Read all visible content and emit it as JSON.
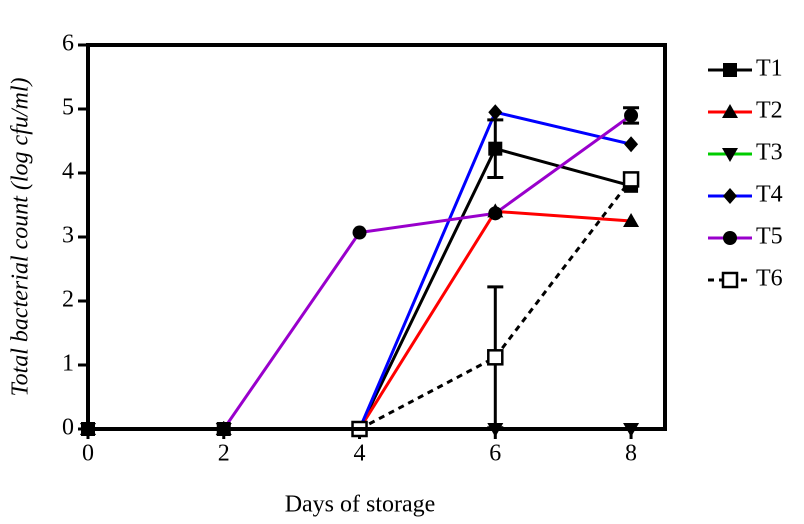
{
  "chart_data": {
    "type": "line",
    "x_label": "Days of storage",
    "y_label": "Total bacterial count (log cfu/ml)",
    "x": [
      0,
      2,
      4,
      6,
      8
    ],
    "xlim": [
      0,
      8.5
    ],
    "xticks": [
      0,
      2,
      4,
      6,
      8
    ],
    "ylim": [
      0,
      6
    ],
    "yticks": [
      0,
      1,
      2,
      3,
      4,
      5,
      6
    ],
    "legend": "right",
    "series": [
      {
        "name": "T1",
        "color": "#000000",
        "marker": "square",
        "line_style": "solid",
        "values": [
          0,
          0,
          0,
          4.38,
          3.8
        ],
        "errors": [
          null,
          null,
          null,
          0.45,
          null
        ]
      },
      {
        "name": "T2",
        "color": "#ff0000",
        "marker": "triangle-up",
        "line_style": "solid",
        "values": [
          0,
          0,
          0,
          3.4,
          3.25
        ],
        "errors": [
          null,
          null,
          null,
          null,
          null
        ]
      },
      {
        "name": "T3",
        "color": "#00cc00",
        "marker": "triangle-down",
        "line_style": "solid",
        "values": [
          0,
          0,
          0,
          0,
          0
        ],
        "errors": [
          null,
          null,
          null,
          null,
          null
        ]
      },
      {
        "name": "T4",
        "color": "#0000ff",
        "marker": "diamond",
        "line_style": "solid",
        "values": [
          0,
          0,
          0,
          4.95,
          4.45
        ],
        "errors": [
          null,
          null,
          null,
          null,
          null
        ]
      },
      {
        "name": "T5",
        "color": "#9900cc",
        "marker": "circle",
        "line_style": "solid",
        "values": [
          0,
          0,
          3.07,
          3.37,
          4.9
        ],
        "errors": [
          null,
          null,
          null,
          null,
          0.12
        ]
      },
      {
        "name": "T6",
        "color": "#000000",
        "marker": "open-square",
        "line_style": "dashed",
        "values": [
          null,
          null,
          0,
          1.12,
          3.9
        ],
        "errors": [
          null,
          null,
          null,
          1.1,
          null
        ]
      }
    ]
  }
}
